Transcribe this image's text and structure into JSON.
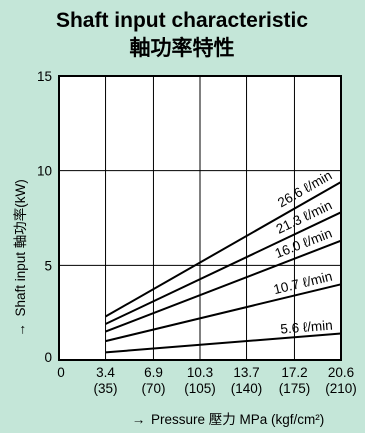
{
  "colors": {
    "background": "#c4e6d8",
    "plot_background": "#ffffff",
    "line": "#000000",
    "grid": "#000000"
  },
  "chart_data": {
    "type": "line",
    "title": "Shaft input characteristic",
    "subtitle": "軸功率特性",
    "xlabel": "Pressure 壓力 MPa (kgf/cm²)",
    "xlabel_arrow": "→",
    "ylabel": "Shaft input 軸功率(kW)",
    "ylabel_arrow": "→",
    "xlim": [
      0,
      20.6
    ],
    "ylim": [
      0,
      15
    ],
    "grid": true,
    "x_ticks": [
      {
        "value": 0,
        "label": "0",
        "sublabel": ""
      },
      {
        "value": 3.4,
        "label": "3.4",
        "sublabel": "(35)"
      },
      {
        "value": 6.9,
        "label": "6.9",
        "sublabel": "(70)"
      },
      {
        "value": 10.3,
        "label": "10.3",
        "sublabel": "(105)"
      },
      {
        "value": 13.7,
        "label": "13.7",
        "sublabel": "(140)"
      },
      {
        "value": 17.2,
        "label": "17.2",
        "sublabel": "(175)"
      },
      {
        "value": 20.6,
        "label": "20.6",
        "sublabel": "(210)"
      }
    ],
    "y_ticks": [
      {
        "value": 0,
        "label": "0"
      },
      {
        "value": 5,
        "label": "5"
      },
      {
        "value": 10,
        "label": "10"
      },
      {
        "value": 15,
        "label": "15"
      }
    ],
    "series": [
      {
        "name": "26.6 ℓ/min",
        "x": [
          3.4,
          20.6
        ],
        "y": [
          2.3,
          9.4
        ]
      },
      {
        "name": "21.3 ℓ/min",
        "x": [
          3.4,
          20.6
        ],
        "y": [
          1.9,
          7.8
        ]
      },
      {
        "name": "16.0 ℓ/min",
        "x": [
          3.4,
          20.6
        ],
        "y": [
          1.5,
          6.3
        ]
      },
      {
        "name": "10.7 ℓ/min",
        "x": [
          3.4,
          20.6
        ],
        "y": [
          1.0,
          4.0
        ]
      },
      {
        "name": "5.6 ℓ/min",
        "x": [
          3.4,
          20.6
        ],
        "y": [
          0.4,
          1.4
        ]
      }
    ]
  }
}
